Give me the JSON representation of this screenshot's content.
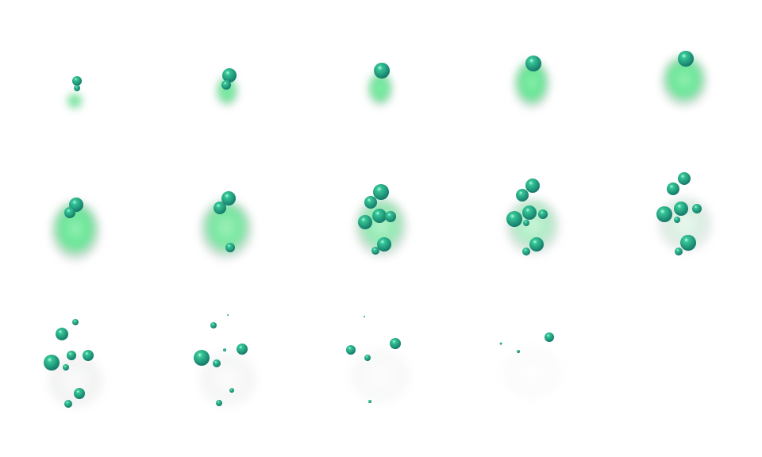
{
  "sprite_sheet": {
    "effect": "poison-gas-puff",
    "frame_count": 14,
    "columns": 5,
    "rows": 3,
    "colors": {
      "background": "#ffffff",
      "gas_green": "#3ee07a",
      "gas_grey": "#c8cccc",
      "bubble_light": "#36c596",
      "bubble_dark": "#0f6f63",
      "bubble_highlight": "#b8ffe6"
    }
  }
}
